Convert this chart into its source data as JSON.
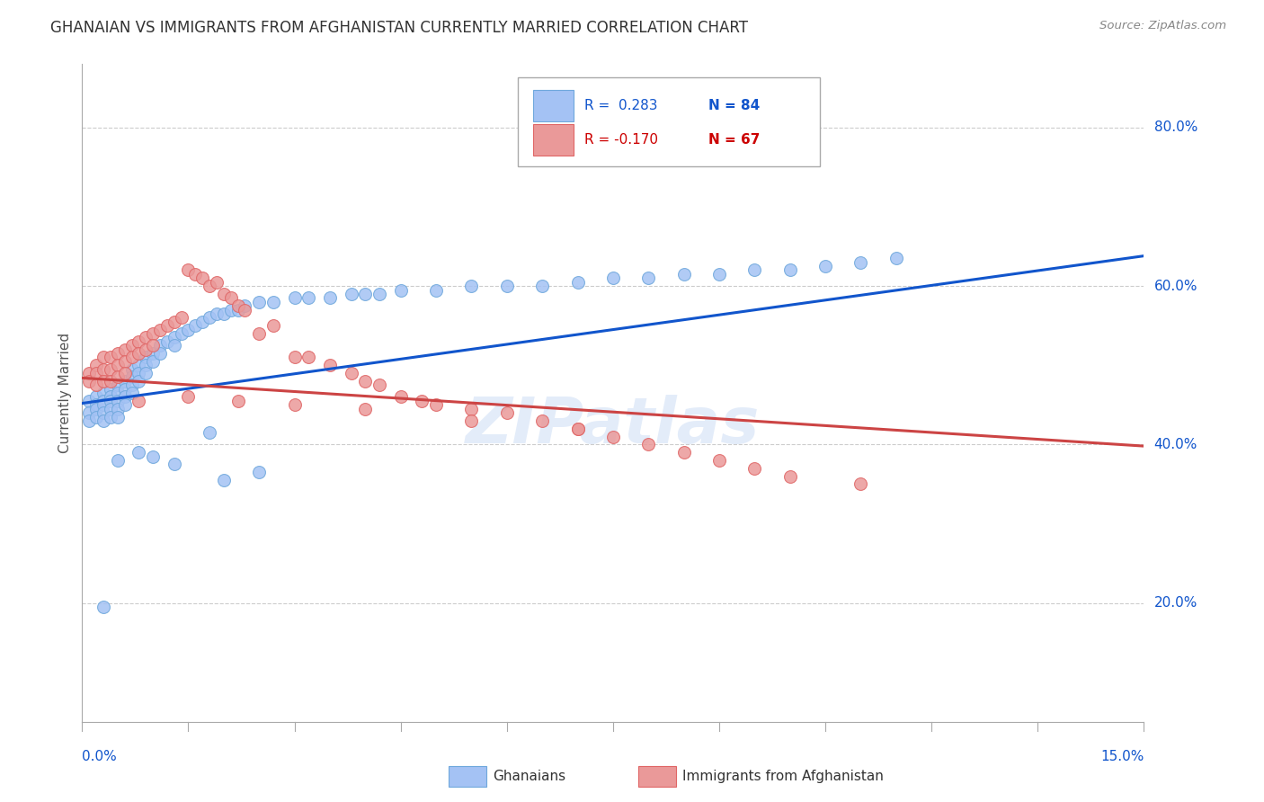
{
  "title": "GHANAIAN VS IMMIGRANTS FROM AFGHANISTAN CURRENTLY MARRIED CORRELATION CHART",
  "source": "Source: ZipAtlas.com",
  "ylabel": "Currently Married",
  "yticks": [
    0.2,
    0.4,
    0.6,
    0.8
  ],
  "ytick_labels": [
    "20.0%",
    "40.0%",
    "60.0%",
    "80.0%"
  ],
  "xmin": 0.0,
  "xmax": 0.15,
  "ymin": 0.05,
  "ymax": 0.88,
  "ghanaian_color": "#a4c2f4",
  "afghanistan_color": "#ea9999",
  "ghanaian_edge_color": "#6fa8dc",
  "afghanistan_edge_color": "#e06666",
  "trendline_blue": "#1155cc",
  "trendline_red": "#cc4444",
  "watermark": "ZIPatlas",
  "ghanaian_label": "Ghanaians",
  "afghanistan_label": "Immigrants from Afghanistan",
  "legend_r1_text": "R =  0.283",
  "legend_n1_text": "N = 84",
  "legend_r2_text": "R = -0.170",
  "legend_n2_text": "N = 67",
  "legend_r1_color": "#1155cc",
  "legend_r2_color": "#cc0000",
  "legend_n_color": "#1155cc",
  "ghanaian_scatter_x": [
    0.001,
    0.001,
    0.001,
    0.002,
    0.002,
    0.002,
    0.002,
    0.003,
    0.003,
    0.003,
    0.003,
    0.003,
    0.004,
    0.004,
    0.004,
    0.004,
    0.004,
    0.005,
    0.005,
    0.005,
    0.005,
    0.005,
    0.006,
    0.006,
    0.006,
    0.006,
    0.007,
    0.007,
    0.007,
    0.007,
    0.008,
    0.008,
    0.008,
    0.009,
    0.009,
    0.009,
    0.01,
    0.01,
    0.011,
    0.011,
    0.012,
    0.013,
    0.013,
    0.014,
    0.015,
    0.016,
    0.017,
    0.018,
    0.019,
    0.02,
    0.021,
    0.022,
    0.023,
    0.025,
    0.027,
    0.03,
    0.032,
    0.035,
    0.038,
    0.04,
    0.042,
    0.045,
    0.05,
    0.055,
    0.06,
    0.065,
    0.07,
    0.075,
    0.08,
    0.085,
    0.09,
    0.095,
    0.1,
    0.105,
    0.11,
    0.115,
    0.003,
    0.005,
    0.008,
    0.01,
    0.013,
    0.018,
    0.02,
    0.025
  ],
  "ghanaian_scatter_y": [
    0.455,
    0.44,
    0.43,
    0.46,
    0.45,
    0.445,
    0.435,
    0.465,
    0.455,
    0.45,
    0.44,
    0.43,
    0.47,
    0.46,
    0.455,
    0.445,
    0.435,
    0.475,
    0.465,
    0.455,
    0.445,
    0.435,
    0.48,
    0.47,
    0.46,
    0.45,
    0.495,
    0.485,
    0.475,
    0.465,
    0.5,
    0.49,
    0.48,
    0.51,
    0.5,
    0.49,
    0.515,
    0.505,
    0.525,
    0.515,
    0.53,
    0.535,
    0.525,
    0.54,
    0.545,
    0.55,
    0.555,
    0.56,
    0.565,
    0.565,
    0.57,
    0.57,
    0.575,
    0.58,
    0.58,
    0.585,
    0.585,
    0.585,
    0.59,
    0.59,
    0.59,
    0.595,
    0.595,
    0.6,
    0.6,
    0.6,
    0.605,
    0.61,
    0.61,
    0.615,
    0.615,
    0.62,
    0.62,
    0.625,
    0.63,
    0.635,
    0.195,
    0.38,
    0.39,
    0.385,
    0.375,
    0.415,
    0.355,
    0.365
  ],
  "afghanistan_scatter_x": [
    0.001,
    0.001,
    0.002,
    0.002,
    0.002,
    0.003,
    0.003,
    0.003,
    0.004,
    0.004,
    0.004,
    0.005,
    0.005,
    0.005,
    0.006,
    0.006,
    0.006,
    0.007,
    0.007,
    0.008,
    0.008,
    0.009,
    0.009,
    0.01,
    0.01,
    0.011,
    0.012,
    0.013,
    0.014,
    0.015,
    0.016,
    0.017,
    0.018,
    0.019,
    0.02,
    0.021,
    0.022,
    0.023,
    0.025,
    0.027,
    0.03,
    0.032,
    0.035,
    0.038,
    0.04,
    0.042,
    0.045,
    0.048,
    0.05,
    0.055,
    0.06,
    0.065,
    0.07,
    0.075,
    0.08,
    0.085,
    0.09,
    0.095,
    0.1,
    0.11,
    0.008,
    0.015,
    0.022,
    0.03,
    0.04,
    0.055,
    0.07
  ],
  "afghanistan_scatter_y": [
    0.49,
    0.48,
    0.5,
    0.49,
    0.475,
    0.51,
    0.495,
    0.48,
    0.51,
    0.495,
    0.48,
    0.515,
    0.5,
    0.485,
    0.52,
    0.505,
    0.49,
    0.525,
    0.51,
    0.53,
    0.515,
    0.535,
    0.52,
    0.54,
    0.525,
    0.545,
    0.55,
    0.555,
    0.56,
    0.62,
    0.615,
    0.61,
    0.6,
    0.605,
    0.59,
    0.585,
    0.575,
    0.57,
    0.54,
    0.55,
    0.51,
    0.51,
    0.5,
    0.49,
    0.48,
    0.475,
    0.46,
    0.455,
    0.45,
    0.445,
    0.44,
    0.43,
    0.42,
    0.41,
    0.4,
    0.39,
    0.38,
    0.37,
    0.36,
    0.35,
    0.455,
    0.46,
    0.455,
    0.45,
    0.445,
    0.43,
    0.42
  ],
  "blue_trend_x": [
    0.0,
    0.15
  ],
  "blue_trend_y": [
    0.452,
    0.638
  ],
  "red_trend_x": [
    0.0,
    0.15
  ],
  "red_trend_y": [
    0.484,
    0.398
  ]
}
